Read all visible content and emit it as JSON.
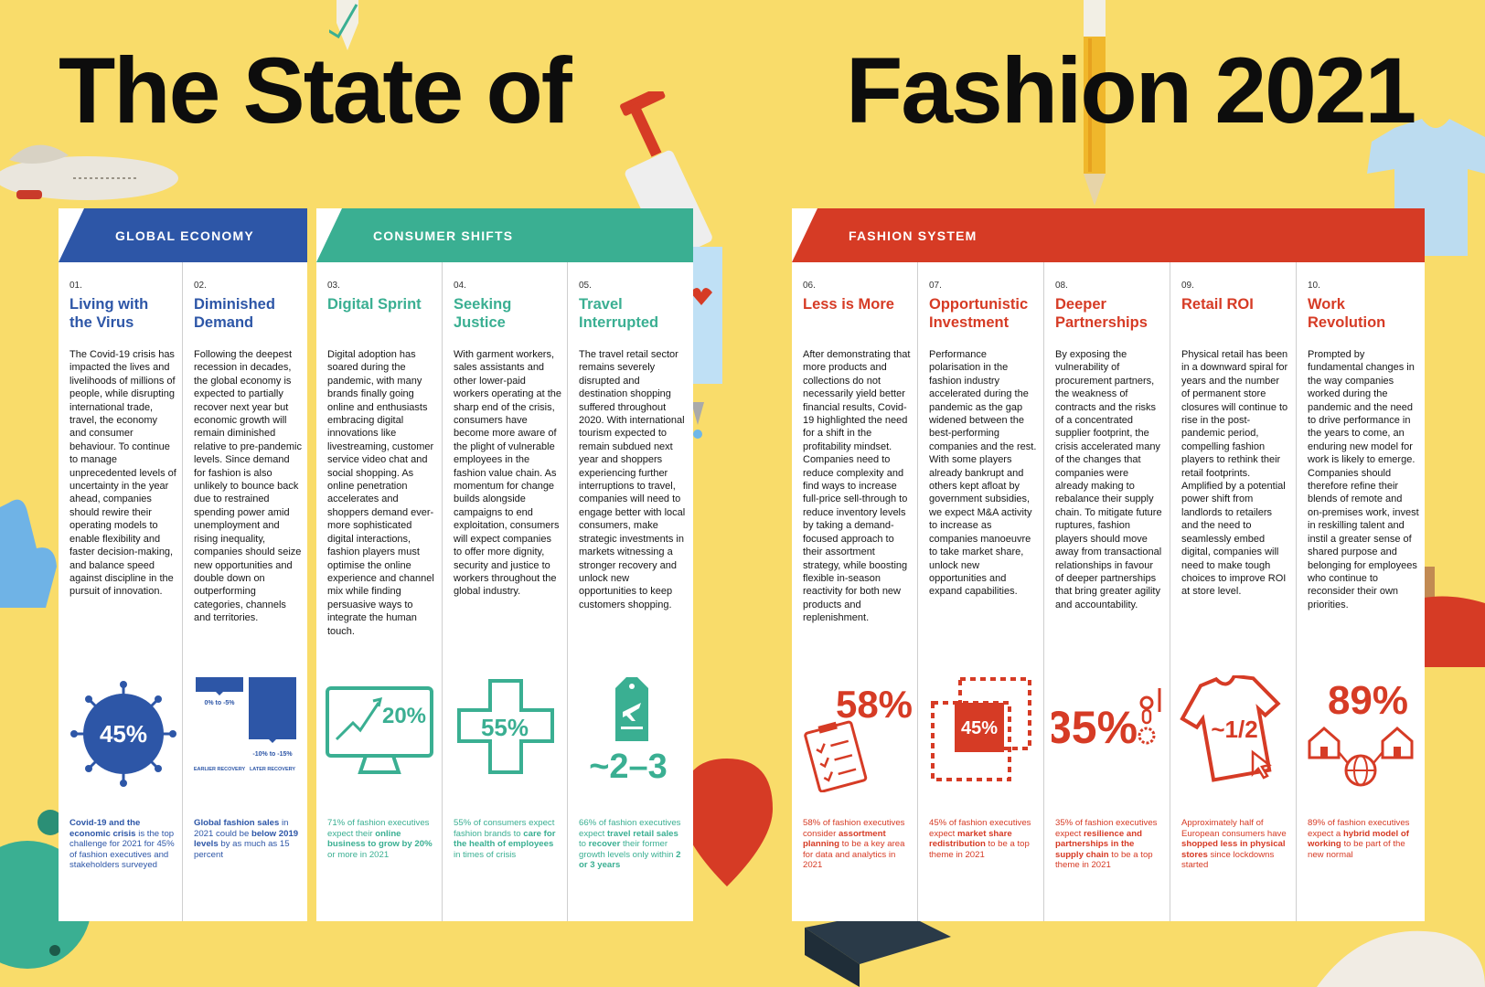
{
  "title_left": "The State of",
  "title_right": "Fashion 2021",
  "colors": {
    "background": "#f9dc6a",
    "global_economy": "#2d56a7",
    "consumer_shifts": "#3aaf92",
    "fashion_system": "#d63b25"
  },
  "sections": {
    "global_economy": "GLOBAL ECONOMY",
    "consumer_shifts": "CONSUMER SHIFTS",
    "fashion_system": "FASHION SYSTEM"
  },
  "themes": [
    {
      "num": "01.",
      "title": "Living with the Virus",
      "body": "The Covid-19 crisis has impacted the lives and livelihoods of millions of people, while disrupting international trade, travel, the economy and consumer behaviour. To continue to manage unprecedented levels of uncertainty in the year ahead, companies should rewire their operating models to enable flexibility and faster decision-making, and balance speed against discipline in the pursuit of innovation.",
      "stat": "45%",
      "note_a": "Covid-19 and the economic crisis",
      "note_b": " is the top challenge for 2021 for 45% of fashion executives and stakeholders surveyed"
    },
    {
      "num": "02.",
      "title": "Diminished Demand",
      "body": "Following the deepest recession in decades, the global economy is expected to partially recover next year but economic growth will remain diminished relative to pre-pandemic levels. Since demand for fashion is also unlikely to bounce back due to restrained spending power amid unemployment and rising inequality, companies should seize new opportunities and double down on outperforming categories, channels and territories.",
      "bar_early_label": "0% to -5%",
      "bar_late_label": "-10% to -15%",
      "early_caption": "EARLIER RECOVERY",
      "late_caption": "LATER RECOVERY",
      "note_a": "Global fashion sales",
      "note_b": " in 2021 could be ",
      "note_c": "below 2019 levels",
      "note_d": " by as much as 15 percent"
    },
    {
      "num": "03.",
      "title": "Digital Sprint",
      "body": "Digital adoption has soared during the pandemic, with many brands finally going online and enthusiasts embracing digital innovations like livestreaming, customer service video chat and social shopping. As online penetration accelerates and shoppers demand ever-more sophisticated digital interactions, fashion players must optimise the online experience and channel mix while finding persuasive ways to integrate the human touch.",
      "stat": "20%",
      "note_a": "71% of fashion executives expect their ",
      "note_b": "online business to grow by 20%",
      "note_c": " or more in 2021"
    },
    {
      "num": "04.",
      "title": "Seeking Justice",
      "body": "With garment workers, sales assistants and other lower-paid workers operating at the sharp end of the crisis, consumers have become more aware of the plight of vulnerable employees in the fashion value chain. As momentum for change builds alongside campaigns to end exploitation, consumers will expect companies to offer more dignity, security and justice to workers throughout the global industry.",
      "stat": "55%",
      "note_a": "55% of consumers expect fashion brands to ",
      "note_b": "care for the health of employees",
      "note_c": " in times of crisis"
    },
    {
      "num": "05.",
      "title": "Travel Interrupted",
      "body": "The travel retail sector remains severely disrupted and destination shopping suffered throughout 2020. With international tourism expected to remain subdued next year and shoppers experiencing further interruptions to travel, companies will need to engage better with local consumers, make strategic investments in markets witnessing a stronger recovery and unlock new opportunities to keep customers shopping.",
      "stat": "~2–3",
      "note_a": "66% of fashion executives expect ",
      "note_b": "travel retail sales",
      "note_c": " to ",
      "note_d": "recover",
      "note_e": " their former growth levels only within ",
      "note_f": "2 or 3 years"
    },
    {
      "num": "06.",
      "title": "Less is More",
      "body": "After demonstrating that more products and collections do not necessarily yield better financial results, Covid-19 highlighted the need for a shift in the profitability mindset. Companies need to reduce complexity and find ways to increase full-price sell-through to reduce inventory levels by taking a demand-focused approach to their assortment strategy, while boosting flexible in-season reactivity for both new products and replenishment.",
      "stat": "58%",
      "note_a": "58% of fashion executives consider ",
      "note_b": "assortment planning",
      "note_c": " to be a key area for data and analytics in 2021"
    },
    {
      "num": "07.",
      "title": "Opportunistic Investment",
      "body": "Performance polarisation in the fashion industry accelerated during the pandemic as the gap widened between the best-performing companies and the rest. With some players already bankrupt and others kept afloat by government subsidies, we expect M&A activity to increase as companies manoeuvre to take market share, unlock new opportunities and expand capabilities.",
      "stat": "45%",
      "note_a": "45% of fashion executives expect ",
      "note_b": "market share redistribution",
      "note_c": " to be a top theme in 2021"
    },
    {
      "num": "08.",
      "title": "Deeper Partnerships",
      "body": "By exposing the vulnerability of procurement partners, the weakness of contracts and the risks of a concentrated supplier footprint, the crisis accelerated many of the changes that companies were already making to rebalance their supply chain. To mitigate future ruptures, fashion players should move away from transactional relationships in favour of deeper partnerships that bring greater agility and accountability.",
      "stat": "35%",
      "note_a": "35% of fashion executives expect ",
      "note_b": "resilience and partnerships in the supply chain",
      "note_c": " to be a top theme in 2021"
    },
    {
      "num": "09.",
      "title": "Retail ROI",
      "body": "Physical retail has been in a downward spiral for years and the number of permanent store closures will continue to rise in the post-pandemic period, compelling fashion players to rethink their retail footprints. Amplified by a potential power shift from landlords to retailers and the need to seamlessly embed digital, companies will need to make tough choices to improve ROI at store level.",
      "stat": "~1/2",
      "note_a": "Approximately half of European consumers have ",
      "note_b": "shopped less in physical stores",
      "note_c": " since lockdowns started"
    },
    {
      "num": "10.",
      "title": "Work Revolution",
      "body": "Prompted by fundamental changes in the way companies worked during the pandemic and the need to drive performance in the years to come, an enduring new model for work is likely to emerge. Companies should therefore refine their blends of remote and on-premises work, invest in reskilling talent and instil a greater sense of shared purpose and belonging for employees who continue to reconsider their own priorities.",
      "stat": "89%",
      "note_a": "89% of fashion executives expect a ",
      "note_b": "hybrid model of working",
      "note_c": " to be part of the new normal"
    }
  ]
}
